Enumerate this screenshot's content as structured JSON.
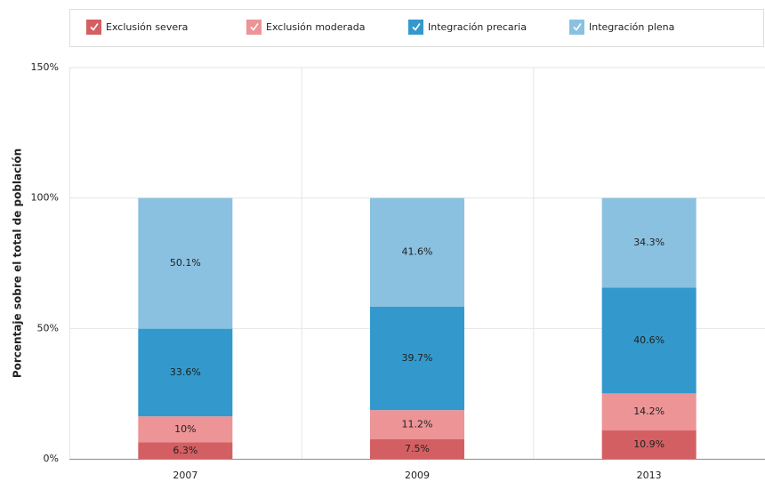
{
  "chart_data": {
    "type": "stacked_bar",
    "y_axis_label": "Porcentaje sobre el total de población",
    "categories": [
      "2007",
      "2009",
      "2013"
    ],
    "series": [
      {
        "name": "Exclusión severa",
        "color": "#d45f62",
        "values": [
          6.3,
          7.5,
          10.9
        ],
        "value_labels": [
          "6.3%",
          "7.5%",
          "10.9%"
        ]
      },
      {
        "name": "Exclusión moderada",
        "color": "#ec9496",
        "values": [
          10,
          11.2,
          14.2
        ],
        "value_labels": [
          "10%",
          "11.2%",
          "14.2%"
        ]
      },
      {
        "name": "Integración precaria",
        "color": "#3399cc",
        "values": [
          33.6,
          39.7,
          40.6
        ],
        "value_labels": [
          "33.6%",
          "39.7%",
          "40.6%"
        ]
      },
      {
        "name": "Integración plena",
        "color": "#8ac1e0",
        "values": [
          50.1,
          41.6,
          34.3
        ],
        "value_labels": [
          "50.1%",
          "41.6%",
          "34.3%"
        ]
      }
    ],
    "ylim": [
      0,
      150
    ],
    "yticks": [
      {
        "value": 0,
        "label": "0%"
      },
      {
        "value": 50,
        "label": "50%"
      },
      {
        "value": 100,
        "label": "100%"
      },
      {
        "value": 150,
        "label": "150%"
      }
    ],
    "grid": true,
    "legend": "top"
  }
}
